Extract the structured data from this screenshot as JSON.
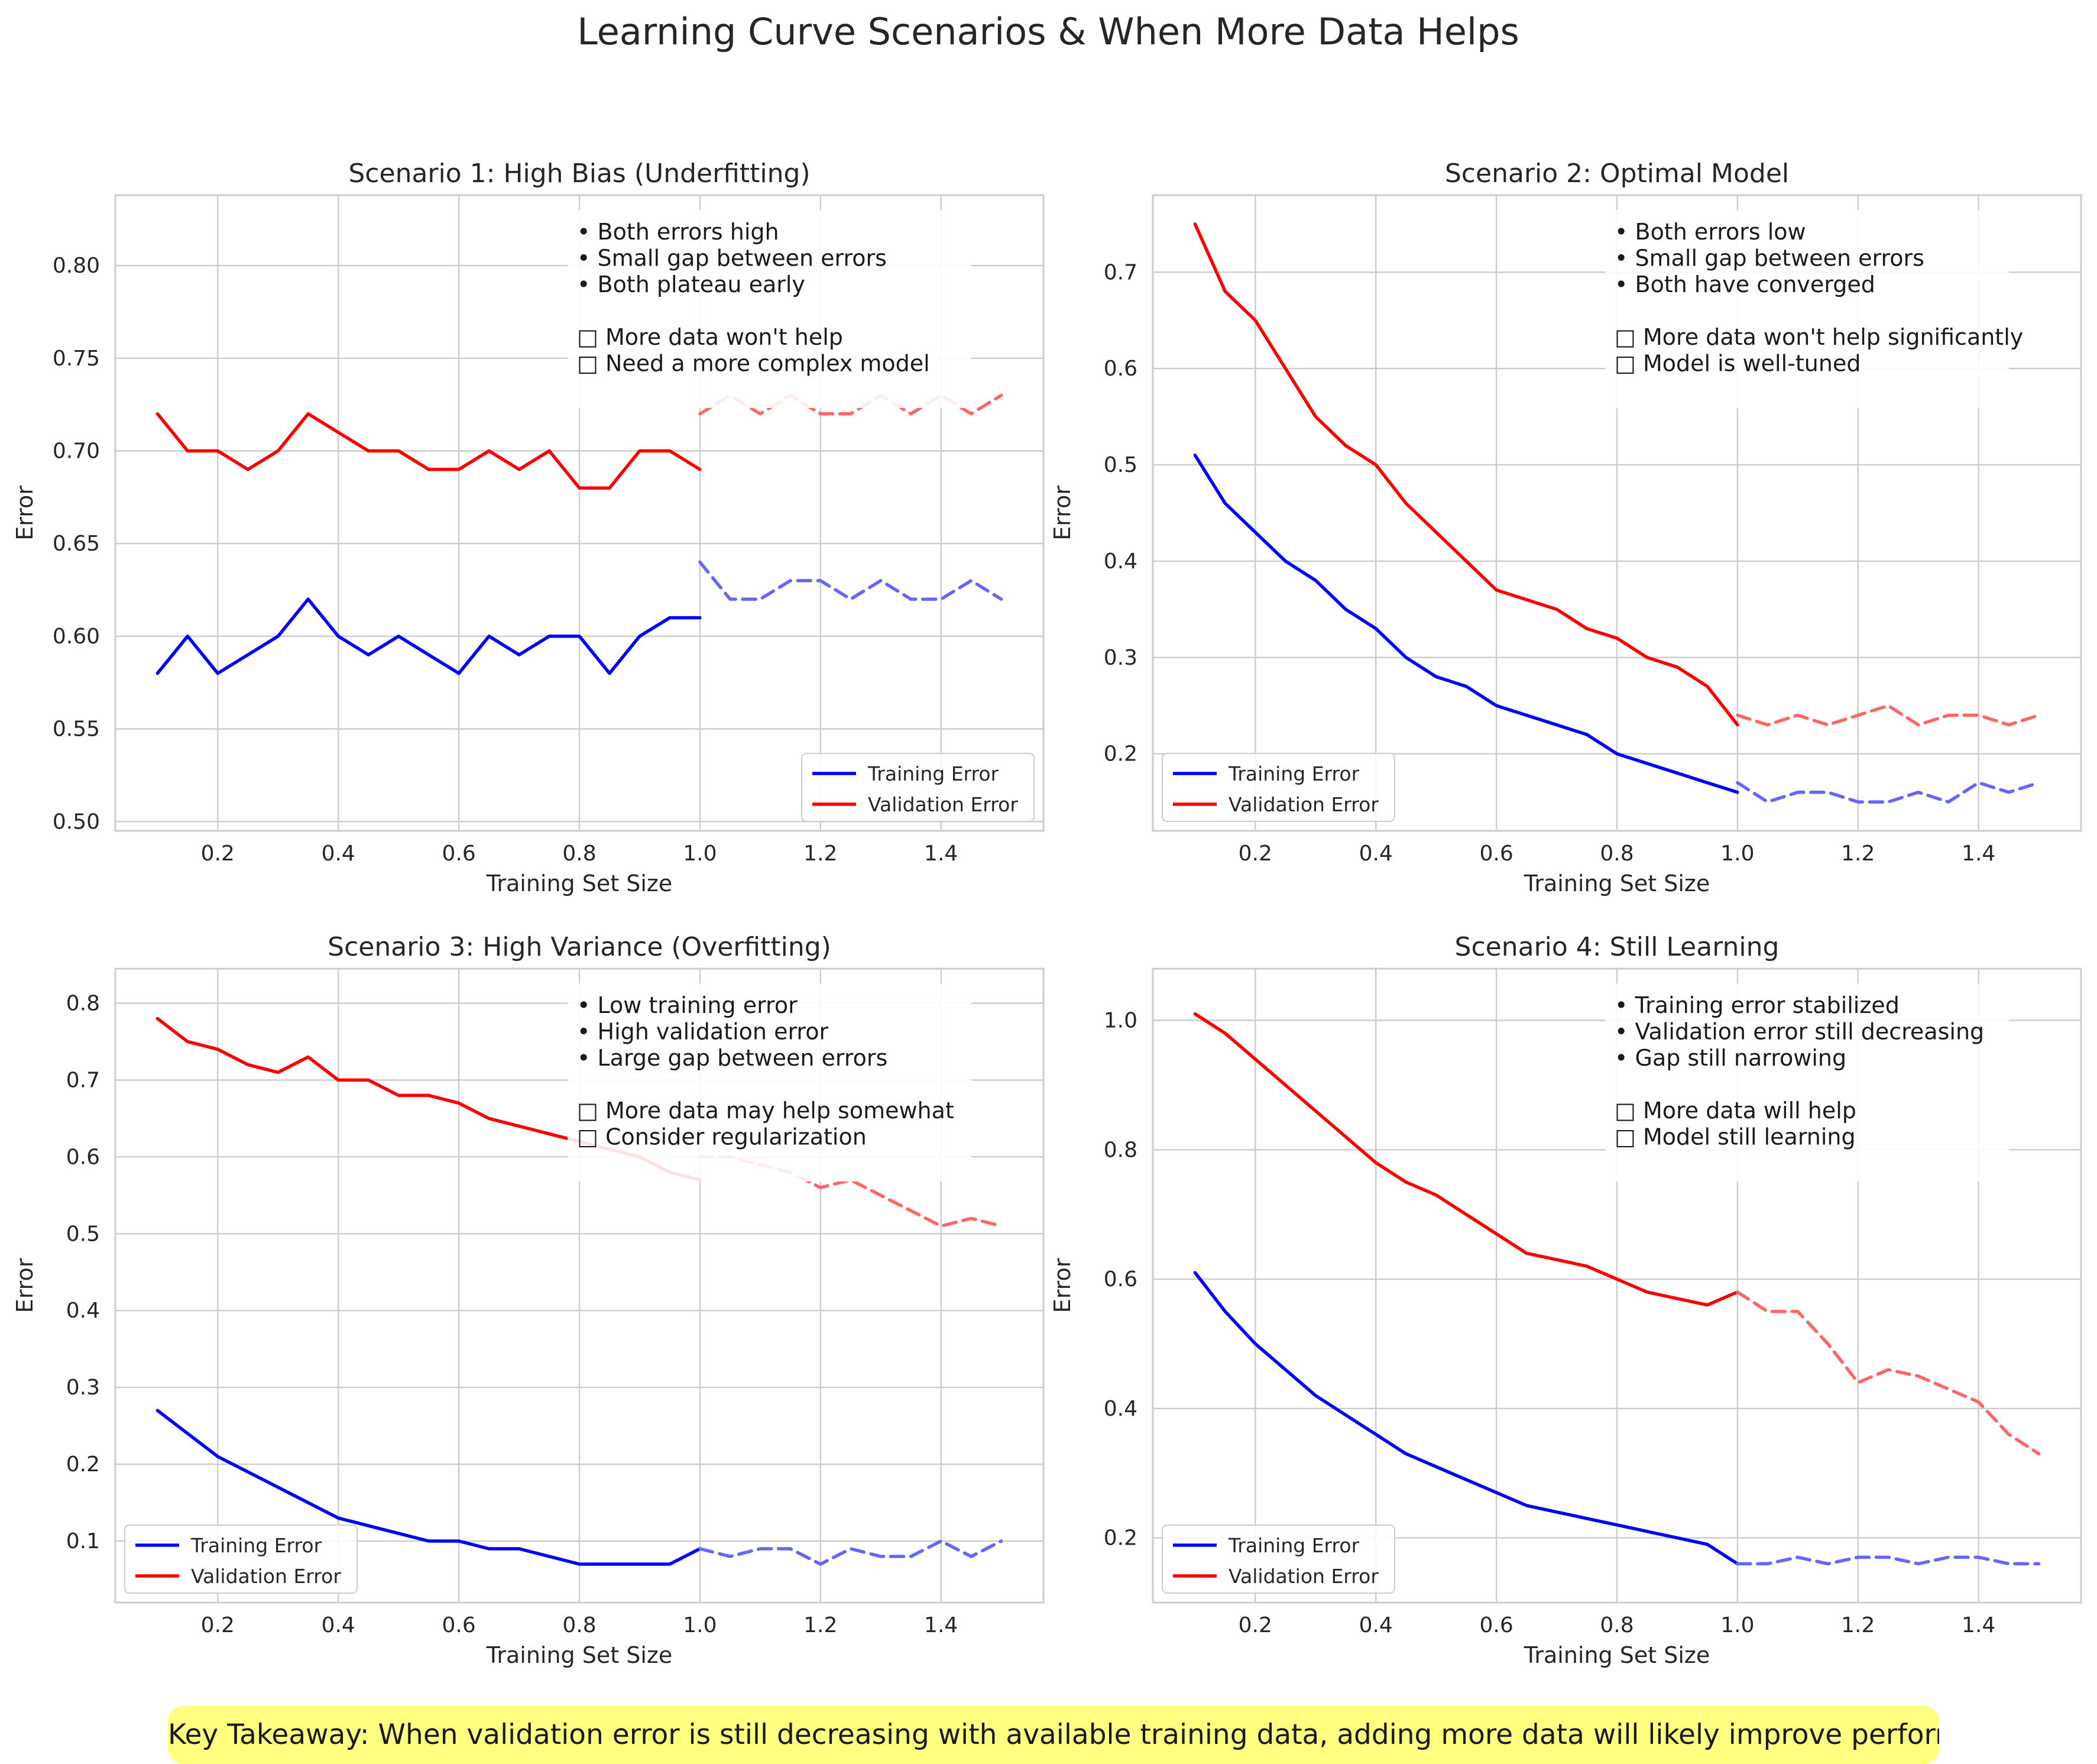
{
  "figure": {
    "suptitle": "Learning Curve Scenarios & When More Data Helps",
    "takeaway": "Key Takeaway: When validation error is still decreasing with available training data, adding more data will likely improve performance."
  },
  "chart_data": [
    {
      "type": "line",
      "title": "Scenario 1: High Bias (Underfitting)",
      "xlabel": "Training Set Size",
      "ylabel": "Error",
      "xlim": [
        0.03,
        1.57
      ],
      "ylim": [
        0.495,
        0.838
      ],
      "xticks": [
        "0.2",
        "0.4",
        "0.6",
        "0.8",
        "1.0",
        "1.2",
        "1.4"
      ],
      "xtick_values": [
        0.2,
        0.4,
        0.6,
        0.8,
        1.0,
        1.2,
        1.4
      ],
      "yticks": [
        "0.50",
        "0.55",
        "0.60",
        "0.65",
        "0.70",
        "0.75",
        "0.80"
      ],
      "ytick_values": [
        0.5,
        0.55,
        0.6,
        0.65,
        0.7,
        0.75,
        0.8
      ],
      "grid": true,
      "legend_position": "lower right",
      "annotation": [
        "• Both errors high",
        "• Small gap between errors",
        "• Both plateau early",
        "",
        "□ More data won't help",
        "□ Need a more complex model"
      ],
      "series": [
        {
          "name": "Training Error",
          "color": "#0000ff",
          "style": "solid",
          "x": [
            0.1,
            0.15,
            0.2,
            0.25,
            0.3,
            0.35,
            0.4,
            0.45,
            0.5,
            0.55,
            0.6,
            0.65,
            0.7,
            0.75,
            0.8,
            0.85,
            0.9,
            0.95,
            1.0
          ],
          "y": [
            0.58,
            0.6,
            0.58,
            0.59,
            0.6,
            0.62,
            0.6,
            0.59,
            0.6,
            0.59,
            0.58,
            0.6,
            0.59,
            0.6,
            0.6,
            0.58,
            0.6,
            0.61,
            0.61
          ]
        },
        {
          "name": "Validation Error",
          "color": "#ff0000",
          "style": "solid",
          "x": [
            0.1,
            0.15,
            0.2,
            0.25,
            0.3,
            0.35,
            0.4,
            0.45,
            0.5,
            0.55,
            0.6,
            0.65,
            0.7,
            0.75,
            0.8,
            0.85,
            0.9,
            0.95,
            1.0
          ],
          "y": [
            0.72,
            0.7,
            0.7,
            0.69,
            0.7,
            0.72,
            0.71,
            0.7,
            0.7,
            0.69,
            0.69,
            0.7,
            0.69,
            0.7,
            0.68,
            0.68,
            0.7,
            0.7,
            0.69
          ]
        },
        {
          "color": "#ff6666",
          "style": "dashed",
          "x": [
            1.0,
            1.05,
            1.1,
            1.15,
            1.2,
            1.25,
            1.3,
            1.35,
            1.4,
            1.45,
            1.5
          ],
          "y": [
            0.72,
            0.73,
            0.72,
            0.73,
            0.72,
            0.72,
            0.73,
            0.72,
            0.73,
            0.72,
            0.73
          ]
        },
        {
          "color": "#6666ff",
          "style": "dashed",
          "x": [
            1.0,
            1.05,
            1.1,
            1.15,
            1.2,
            1.25,
            1.3,
            1.35,
            1.4,
            1.45,
            1.5
          ],
          "y": [
            0.64,
            0.62,
            0.62,
            0.63,
            0.63,
            0.62,
            0.63,
            0.62,
            0.62,
            0.63,
            0.62
          ]
        }
      ]
    },
    {
      "type": "line",
      "title": "Scenario 2: Optimal Model",
      "xlabel": "Training Set Size",
      "ylabel": "Error",
      "xlim": [
        0.03,
        1.57
      ],
      "ylim": [
        0.12,
        0.78
      ],
      "xticks": [
        "0.2",
        "0.4",
        "0.6",
        "0.8",
        "1.0",
        "1.2",
        "1.4"
      ],
      "xtick_values": [
        0.2,
        0.4,
        0.6,
        0.8,
        1.0,
        1.2,
        1.4
      ],
      "yticks": [
        "0.2",
        "0.3",
        "0.4",
        "0.5",
        "0.6",
        "0.7"
      ],
      "ytick_values": [
        0.2,
        0.3,
        0.4,
        0.5,
        0.6,
        0.7
      ],
      "grid": true,
      "legend_position": "lower left",
      "annotation": [
        "• Both errors low",
        "• Small gap between errors",
        "• Both have converged",
        "",
        "□ More data won't help significantly",
        "□ Model is well-tuned"
      ],
      "series": [
        {
          "name": "Training Error",
          "color": "#0000ff",
          "style": "solid",
          "x": [
            0.1,
            0.15,
            0.2,
            0.25,
            0.3,
            0.35,
            0.4,
            0.45,
            0.5,
            0.55,
            0.6,
            0.65,
            0.7,
            0.75,
            0.8,
            0.85,
            0.9,
            0.95,
            1.0
          ],
          "y": [
            0.51,
            0.46,
            0.43,
            0.4,
            0.38,
            0.35,
            0.33,
            0.3,
            0.28,
            0.27,
            0.25,
            0.24,
            0.23,
            0.22,
            0.2,
            0.19,
            0.18,
            0.17,
            0.16
          ]
        },
        {
          "name": "Validation Error",
          "color": "#ff0000",
          "style": "solid",
          "x": [
            0.1,
            0.15,
            0.2,
            0.25,
            0.3,
            0.35,
            0.4,
            0.45,
            0.5,
            0.55,
            0.6,
            0.65,
            0.7,
            0.75,
            0.8,
            0.85,
            0.9,
            0.95,
            1.0
          ],
          "y": [
            0.75,
            0.68,
            0.65,
            0.6,
            0.55,
            0.52,
            0.5,
            0.46,
            0.43,
            0.4,
            0.37,
            0.36,
            0.35,
            0.33,
            0.32,
            0.3,
            0.29,
            0.27,
            0.23
          ]
        },
        {
          "color": "#ff6666",
          "style": "dashed",
          "x": [
            1.0,
            1.05,
            1.1,
            1.15,
            1.2,
            1.25,
            1.3,
            1.35,
            1.4,
            1.45,
            1.5
          ],
          "y": [
            0.24,
            0.23,
            0.24,
            0.23,
            0.24,
            0.25,
            0.23,
            0.24,
            0.24,
            0.23,
            0.24
          ]
        },
        {
          "color": "#6666ff",
          "style": "dashed",
          "x": [
            1.0,
            1.05,
            1.1,
            1.15,
            1.2,
            1.25,
            1.3,
            1.35,
            1.4,
            1.45,
            1.5
          ],
          "y": [
            0.17,
            0.15,
            0.16,
            0.16,
            0.15,
            0.15,
            0.16,
            0.15,
            0.17,
            0.16,
            0.17
          ]
        }
      ]
    },
    {
      "type": "line",
      "title": "Scenario 3: High Variance (Overfitting)",
      "xlabel": "Training Set Size",
      "ylabel": "Error",
      "xlim": [
        0.03,
        1.57
      ],
      "ylim": [
        0.02,
        0.845
      ],
      "xticks": [
        "0.2",
        "0.4",
        "0.6",
        "0.8",
        "1.0",
        "1.2",
        "1.4"
      ],
      "xtick_values": [
        0.2,
        0.4,
        0.6,
        0.8,
        1.0,
        1.2,
        1.4
      ],
      "yticks": [
        "0.1",
        "0.2",
        "0.3",
        "0.4",
        "0.5",
        "0.6",
        "0.7",
        "0.8"
      ],
      "ytick_values": [
        0.1,
        0.2,
        0.3,
        0.4,
        0.5,
        0.6,
        0.7,
        0.8
      ],
      "grid": true,
      "legend_position": "lower left",
      "annotation": [
        "• Low training error",
        "• High validation error",
        "• Large gap between errors",
        "",
        "□ More data may help somewhat",
        "□ Consider regularization"
      ],
      "series": [
        {
          "name": "Training Error",
          "color": "#0000ff",
          "style": "solid",
          "x": [
            0.1,
            0.15,
            0.2,
            0.25,
            0.3,
            0.35,
            0.4,
            0.45,
            0.5,
            0.55,
            0.6,
            0.65,
            0.7,
            0.75,
            0.8,
            0.85,
            0.9,
            0.95,
            1.0
          ],
          "y": [
            0.27,
            0.24,
            0.21,
            0.19,
            0.17,
            0.15,
            0.13,
            0.12,
            0.11,
            0.1,
            0.1,
            0.09,
            0.09,
            0.08,
            0.07,
            0.07,
            0.07,
            0.07,
            0.09
          ]
        },
        {
          "name": "Validation Error",
          "color": "#ff0000",
          "style": "solid",
          "x": [
            0.1,
            0.15,
            0.2,
            0.25,
            0.3,
            0.35,
            0.4,
            0.45,
            0.5,
            0.55,
            0.6,
            0.65,
            0.7,
            0.75,
            0.8,
            0.85,
            0.9,
            0.95,
            1.0
          ],
          "y": [
            0.78,
            0.75,
            0.74,
            0.72,
            0.71,
            0.73,
            0.7,
            0.7,
            0.68,
            0.68,
            0.67,
            0.65,
            0.64,
            0.63,
            0.62,
            0.61,
            0.6,
            0.58,
            0.57
          ]
        },
        {
          "color": "#ff6666",
          "style": "dashed",
          "x": [
            1.0,
            1.05,
            1.1,
            1.15,
            1.2,
            1.25,
            1.3,
            1.35,
            1.4,
            1.45,
            1.5
          ],
          "y": [
            0.6,
            0.6,
            0.59,
            0.58,
            0.56,
            0.57,
            0.55,
            0.53,
            0.51,
            0.52,
            0.51
          ]
        },
        {
          "color": "#6666ff",
          "style": "dashed",
          "x": [
            1.0,
            1.05,
            1.1,
            1.15,
            1.2,
            1.25,
            1.3,
            1.35,
            1.4,
            1.45,
            1.5
          ],
          "y": [
            0.09,
            0.08,
            0.09,
            0.09,
            0.07,
            0.09,
            0.08,
            0.08,
            0.1,
            0.08,
            0.1
          ]
        }
      ]
    },
    {
      "type": "line",
      "title": "Scenario 4: Still Learning",
      "xlabel": "Training Set Size",
      "ylabel": "Error",
      "xlim": [
        0.03,
        1.57
      ],
      "ylim": [
        0.1,
        1.08
      ],
      "xticks": [
        "0.2",
        "0.4",
        "0.6",
        "0.8",
        "1.0",
        "1.2",
        "1.4"
      ],
      "xtick_values": [
        0.2,
        0.4,
        0.6,
        0.8,
        1.0,
        1.2,
        1.4
      ],
      "yticks": [
        "0.2",
        "0.4",
        "0.6",
        "0.8",
        "1.0"
      ],
      "ytick_values": [
        0.2,
        0.4,
        0.6,
        0.8,
        1.0
      ],
      "grid": true,
      "legend_position": "lower left",
      "annotation": [
        "• Training error stabilized",
        "• Validation error still decreasing",
        "• Gap still narrowing",
        "",
        "□ More data will help",
        "□ Model still learning"
      ],
      "series": [
        {
          "name": "Training Error",
          "color": "#0000ff",
          "style": "solid",
          "x": [
            0.1,
            0.15,
            0.2,
            0.25,
            0.3,
            0.35,
            0.4,
            0.45,
            0.5,
            0.55,
            0.6,
            0.65,
            0.7,
            0.75,
            0.8,
            0.85,
            0.9,
            0.95,
            1.0
          ],
          "y": [
            0.61,
            0.55,
            0.5,
            0.46,
            0.42,
            0.39,
            0.36,
            0.33,
            0.31,
            0.29,
            0.27,
            0.25,
            0.24,
            0.23,
            0.22,
            0.21,
            0.2,
            0.19,
            0.16
          ]
        },
        {
          "name": "Validation Error",
          "color": "#ff0000",
          "style": "solid",
          "x": [
            0.1,
            0.15,
            0.2,
            0.25,
            0.3,
            0.35,
            0.4,
            0.45,
            0.5,
            0.55,
            0.6,
            0.65,
            0.7,
            0.75,
            0.8,
            0.85,
            0.9,
            0.95,
            1.0
          ],
          "y": [
            1.01,
            0.98,
            0.94,
            0.9,
            0.86,
            0.82,
            0.78,
            0.75,
            0.73,
            0.7,
            0.67,
            0.64,
            0.63,
            0.62,
            0.6,
            0.58,
            0.57,
            0.56,
            0.58
          ]
        },
        {
          "color": "#ff6666",
          "style": "dashed",
          "x": [
            1.0,
            1.05,
            1.1,
            1.15,
            1.2,
            1.25,
            1.3,
            1.35,
            1.4,
            1.45,
            1.5
          ],
          "y": [
            0.58,
            0.55,
            0.55,
            0.5,
            0.44,
            0.46,
            0.45,
            0.43,
            0.41,
            0.36,
            0.33
          ]
        },
        {
          "color": "#6666ff",
          "style": "dashed",
          "x": [
            1.0,
            1.05,
            1.1,
            1.15,
            1.2,
            1.25,
            1.3,
            1.35,
            1.4,
            1.45,
            1.5
          ],
          "y": [
            0.16,
            0.16,
            0.17,
            0.16,
            0.17,
            0.17,
            0.16,
            0.17,
            0.17,
            0.16,
            0.16
          ]
        }
      ]
    }
  ]
}
